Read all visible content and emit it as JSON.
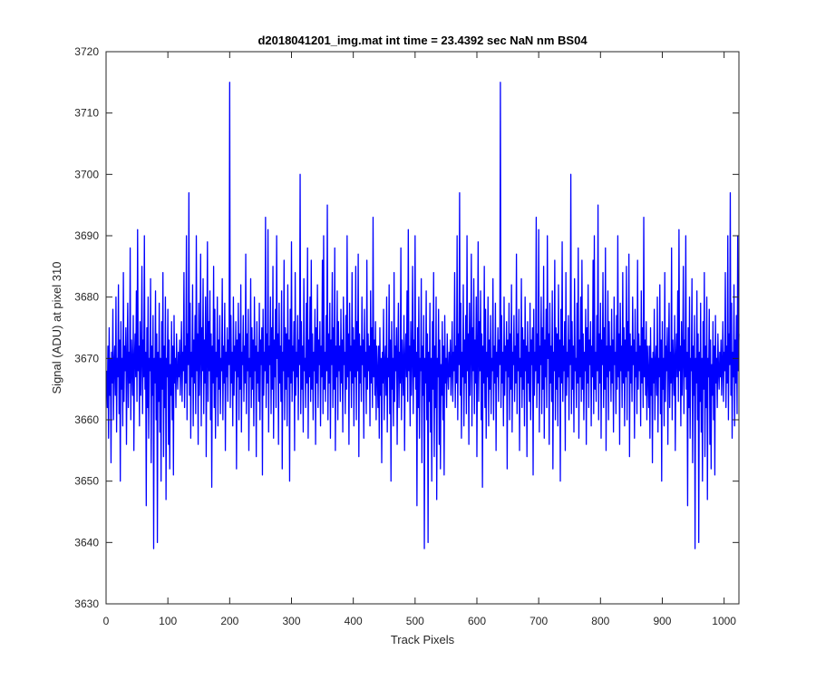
{
  "chart_data": {
    "type": "line",
    "title": "d2018041201_img.mat int time = 23.4392 sec  NaN nm BS04",
    "xlabel": "Track Pixels",
    "ylabel": "Signal (ADU) at pixel 310",
    "xlim": [
      0,
      1024
    ],
    "ylim": [
      3630,
      3720
    ],
    "xticks": [
      0,
      100,
      200,
      300,
      400,
      500,
      600,
      700,
      800,
      900,
      1000
    ],
    "yticks": [
      3630,
      3640,
      3650,
      3660,
      3670,
      3680,
      3690,
      3700,
      3710,
      3720
    ],
    "grid": false,
    "series": [
      {
        "color": "#0000ff",
        "x_start": 1,
        "x_step": 1,
        "approx_mean": 3670,
        "values": [
          3668,
          3662,
          3672,
          3657,
          3675,
          3664,
          3670,
          3653,
          3671,
          3666,
          3678,
          3660,
          3669,
          3672,
          3664,
          3680,
          3658,
          3670,
          3667,
          3682,
          3661,
          3673,
          3650,
          3676,
          3665,
          3670,
          3659,
          3684,
          3663,
          3672,
          3668,
          3675,
          3656,
          3670,
          3679,
          3662,
          3671,
          3666,
          3688,
          3660,
          3673,
          3669,
          3664,
          3677,
          3655,
          3670,
          3674,
          3667,
          3681,
          3663,
          3691,
          3668,
          3672,
          3659,
          3676,
          3664,
          3670,
          3685,
          3661,
          3673,
          3667,
          3690,
          3665,
          3671,
          3646,
          3675,
          3662,
          3680,
          3657,
          3670,
          3668,
          3683,
          3653,
          3672,
          3664,
          3677,
          3639,
          3670,
          3666,
          3681,
          3660,
          3674,
          3640,
          3671,
          3663,
          3679,
          3658,
          3670,
          3650,
          3676,
          3665,
          3684,
          3654,
          3672,
          3662,
          3680,
          3647,
          3670,
          3667,
          3678,
          3656,
          3673,
          3652,
          3669,
          3664,
          3676,
          3660,
          3672,
          3651,
          3677,
          3666,
          3670,
          3662,
          3674,
          3668,
          3665,
          3671,
          3667,
          3673,
          3664,
          3669,
          3676,
          3663,
          3671,
          3668,
          3684,
          3662,
          3672,
          3666,
          3690,
          3660,
          3674,
          3669,
          3697,
          3664,
          3679,
          3657,
          3671,
          3667,
          3682,
          3659,
          3673,
          3666,
          3677,
          3661,
          3690,
          3668,
          3674,
          3656,
          3679,
          3664,
          3671,
          3687,
          3659,
          3675,
          3668,
          3683,
          3661,
          3673,
          3666,
          3680,
          3654,
          3671,
          3689,
          3663,
          3676,
          3668,
          3681,
          3660,
          3674,
          3649,
          3672,
          3666,
          3685,
          3662,
          3678,
          3657,
          3671,
          3667,
          3680,
          3659,
          3673,
          3665,
          3677,
          3661,
          3670,
          3668,
          3683,
          3660,
          3672,
          3666,
          3679,
          3655,
          3671,
          3667,
          3675,
          3663,
          3673,
          3669,
          3715,
          3662,
          3677,
          3666,
          3671,
          3659,
          3680,
          3664,
          3672,
          3668,
          3676,
          3652,
          3673,
          3667,
          3679,
          3660,
          3674,
          3665,
          3682,
          3658,
          3671,
          3669,
          3677,
          3663,
          3672,
          3666,
          3687,
          3661,
          3674,
          3668,
          3678,
          3655,
          3670,
          3667,
          3683,
          3662,
          3675,
          3665,
          3673,
          3659,
          3680,
          3668,
          3672,
          3654,
          3676,
          3666,
          3671,
          3663,
          3679,
          3660,
          3673,
          3669,
          3675,
          3651,
          3678,
          3664,
          3671,
          3668,
          3693,
          3662,
          3674,
          3666,
          3691,
          3658,
          3672,
          3669,
          3680,
          3661,
          3675,
          3665,
          3685,
          3657,
          3673,
          3667,
          3678,
          3662,
          3690,
          3670,
          3674,
          3656,
          3679,
          3666,
          3672,
          3663,
          3681,
          3652,
          3671,
          3668,
          3686,
          3660,
          3675,
          3665,
          3674,
          3659,
          3682,
          3667,
          3673,
          3650,
          3678,
          3666,
          3689,
          3663,
          3672,
          3668,
          3676,
          3655,
          3684,
          3664,
          3671,
          3667,
          3677,
          3660,
          3673,
          3669,
          3700,
          3661,
          3676,
          3665,
          3672,
          3658,
          3683,
          3668,
          3670,
          3662,
          3679,
          3666,
          3688,
          3657,
          3673,
          3667,
          3680,
          3663,
          3686,
          3665,
          3674,
          3660,
          3671,
          3668,
          3678,
          3656,
          3675,
          3666,
          3682,
          3662,
          3673,
          3669,
          3676,
          3659,
          3672,
          3667,
          3686,
          3661,
          3690,
          3665,
          3671,
          3663,
          3677,
          3668,
          3695,
          3660,
          3674,
          3666,
          3679,
          3657,
          3673,
          3669,
          3684,
          3662,
          3675,
          3665,
          3688,
          3655,
          3672,
          3667,
          3681,
          3660,
          3676,
          3668,
          3672,
          3663,
          3678,
          3666,
          3673,
          3658,
          3680,
          3669,
          3671,
          3661,
          3677,
          3665,
          3690,
          3667,
          3674,
          3656,
          3679,
          3668,
          3672,
          3662,
          3684,
          3666,
          3675,
          3659,
          3673,
          3667,
          3685,
          3660,
          3676,
          3668,
          3687,
          3654,
          3674,
          3666,
          3672,
          3663,
          3680,
          3669,
          3673,
          3657,
          3678,
          3667,
          3671,
          3661,
          3686,
          3665,
          3674,
          3668,
          3672,
          3659,
          3681,
          3666,
          3675,
          3662,
          3693,
          3667,
          3673,
          3664,
          3676,
          3660,
          3672
        ]
      }
    ]
  }
}
